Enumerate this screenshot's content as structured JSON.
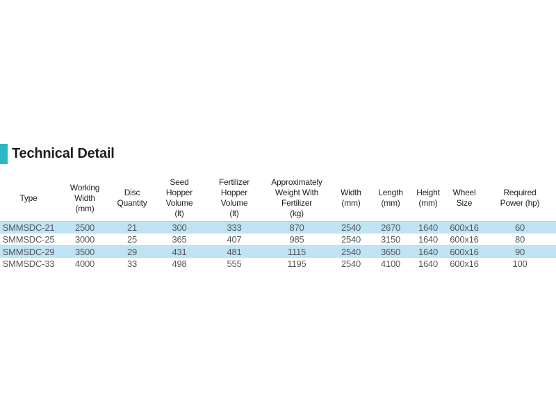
{
  "heading": {
    "title": "Technical Detail"
  },
  "colors": {
    "accent": "#2eb6c7",
    "row_stripe": "#bfe3f4"
  },
  "table": {
    "columns": [
      "Type",
      "Working\nWidth\n(mm)",
      "Disc\nQuantity",
      "Seed\nHopper\nVolume\n(lt)",
      "Fertilizer\nHopper\nVolume\n(lt)",
      "Approximately\nWeight With\nFertilizer\n(kg)",
      "Width\n(mm)",
      "Length\n(mm)",
      "Height\n(mm)",
      "Wheel\nSize",
      "Required\nPower (hp)"
    ],
    "rows": [
      [
        "SMMSDC-21",
        "2500",
        "21",
        "300",
        "333",
        "870",
        "2540",
        "2670",
        "1640",
        "600x16",
        "60"
      ],
      [
        "SMMSDC-25",
        "3000",
        "25",
        "365",
        "407",
        "985",
        "2540",
        "3150",
        "1640",
        "600x16",
        "80"
      ],
      [
        "SMMSDC-29",
        "3500",
        "29",
        "431",
        "481",
        "1115",
        "2540",
        "3650",
        "1640",
        "600x16",
        "90"
      ],
      [
        "SMMSDC-33",
        "4000",
        "33",
        "498",
        "555",
        "1195",
        "2540",
        "4100",
        "1640",
        "600x16",
        "100"
      ]
    ]
  }
}
